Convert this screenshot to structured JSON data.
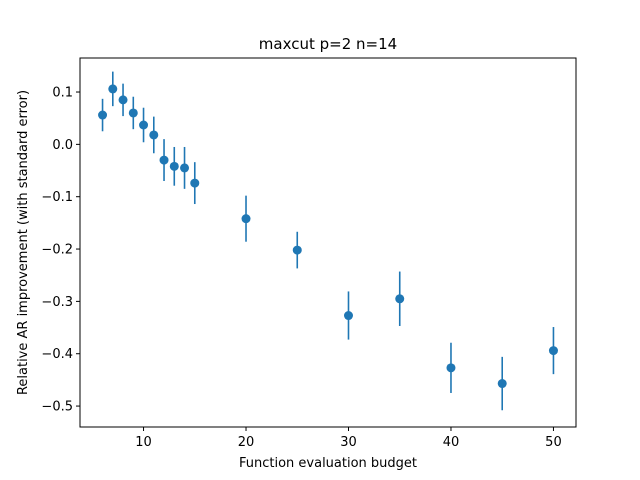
{
  "chart_data": {
    "type": "scatter",
    "title": "maxcut p=2 n=14",
    "xlabel": "Function evaluation budget",
    "ylabel": "Relative AR improvement (with standard error)",
    "xlim": [
      3.8,
      52.2
    ],
    "ylim": [
      -0.54,
      0.165
    ],
    "xticks": [
      10,
      20,
      30,
      40,
      50
    ],
    "yticks": [
      0.1,
      0.0,
      -0.1,
      -0.2,
      -0.3,
      -0.4,
      -0.5
    ],
    "xtick_labels": [
      "10",
      "20",
      "30",
      "40",
      "50"
    ],
    "ytick_labels": [
      "0.1",
      "0.0",
      "−0.1",
      "−0.2",
      "−0.3",
      "−0.4",
      "−0.5"
    ],
    "color": "#1f77b4",
    "grid": false,
    "points": [
      {
        "x": 6,
        "y": 0.056,
        "err": 0.031
      },
      {
        "x": 7,
        "y": 0.106,
        "err": 0.033
      },
      {
        "x": 8,
        "y": 0.085,
        "err": 0.031
      },
      {
        "x": 9,
        "y": 0.06,
        "err": 0.031
      },
      {
        "x": 10,
        "y": 0.037,
        "err": 0.033
      },
      {
        "x": 11,
        "y": 0.018,
        "err": 0.035
      },
      {
        "x": 12,
        "y": -0.03,
        "err": 0.04
      },
      {
        "x": 13,
        "y": -0.042,
        "err": 0.037
      },
      {
        "x": 14,
        "y": -0.045,
        "err": 0.04
      },
      {
        "x": 15,
        "y": -0.074,
        "err": 0.04
      },
      {
        "x": 20,
        "y": -0.142,
        "err": 0.044
      },
      {
        "x": 25,
        "y": -0.202,
        "err": 0.035
      },
      {
        "x": 30,
        "y": -0.327,
        "err": 0.046
      },
      {
        "x": 35,
        "y": -0.295,
        "err": 0.052
      },
      {
        "x": 40,
        "y": -0.427,
        "err": 0.048
      },
      {
        "x": 45,
        "y": -0.457,
        "err": 0.051
      },
      {
        "x": 50,
        "y": -0.394,
        "err": 0.045
      }
    ]
  }
}
